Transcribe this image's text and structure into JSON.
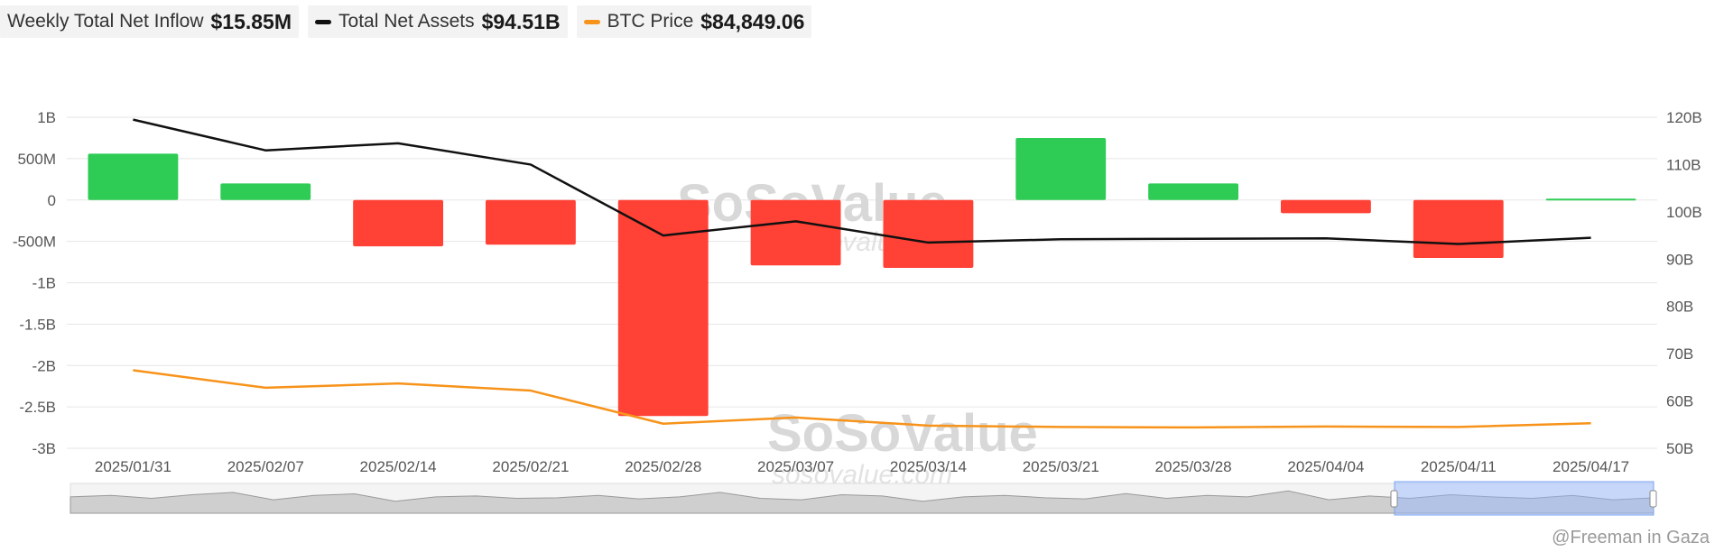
{
  "legend": [
    {
      "label": "Weekly Total Net Inflow",
      "value": "$15.85M",
      "color": ""
    },
    {
      "label": "Total Net Assets",
      "value": "$94.51B",
      "color": "#111111"
    },
    {
      "label": "BTC Price",
      "value": "$84,849.06",
      "color": "#f7931a"
    }
  ],
  "watermark": {
    "brand": "SoSoValue",
    "url": "sosovalue.com"
  },
  "credit": "@Freeman in Gaza",
  "colors": {
    "positive": "#2ecc55",
    "negative": "#ff4136",
    "assets": "#111111",
    "btc": "#f7931a",
    "grid": "#e6e6e6"
  },
  "chart_data": {
    "type": "bar",
    "categories": [
      "2025/01/31",
      "2025/02/07",
      "2025/02/14",
      "2025/02/21",
      "2025/02/28",
      "2025/03/07",
      "2025/03/14",
      "2025/03/21",
      "2025/03/28",
      "2025/04/04",
      "2025/04/11",
      "2025/04/17"
    ],
    "left_axis": {
      "ticks": [
        "1B",
        "500M",
        "0",
        "-500M",
        "-1B",
        "-1.5B",
        "-2B",
        "-2.5B",
        "-3B"
      ],
      "tick_values": [
        1000,
        500,
        0,
        -500,
        -1000,
        -1500,
        -2000,
        -2500,
        -3000
      ],
      "ylim": [
        -3000,
        1000
      ],
      "unit": "M USD"
    },
    "right_axis": {
      "ticks": [
        "120B",
        "110B",
        "100B",
        "90B",
        "80B",
        "70B",
        "60B",
        "50B"
      ],
      "tick_values": [
        120,
        110,
        100,
        90,
        80,
        70,
        60,
        50
      ],
      "ylim": [
        50,
        120
      ],
      "unit": "B USD"
    },
    "series": [
      {
        "name": "Weekly Total Net Inflow",
        "type": "bar",
        "axis": "left",
        "values": [
          560,
          200,
          -560,
          -540,
          -2610,
          -790,
          -820,
          750,
          200,
          -160,
          -700,
          15.85
        ]
      },
      {
        "name": "Total Net Assets",
        "type": "line",
        "axis": "right",
        "values": [
          119.5,
          113,
          114.5,
          110,
          95,
          98,
          93.5,
          94.2,
          94.3,
          94.4,
          93.2,
          94.51
        ]
      },
      {
        "name": "BTC Price",
        "type": "line",
        "axis": "right",
        "values": [
          66.5,
          62.8,
          63.7,
          62.2,
          55.2,
          56.5,
          54.8,
          54.5,
          54.4,
          54.6,
          54.5,
          55.3
        ]
      }
    ],
    "grid": true,
    "legend_position": "top-left"
  }
}
